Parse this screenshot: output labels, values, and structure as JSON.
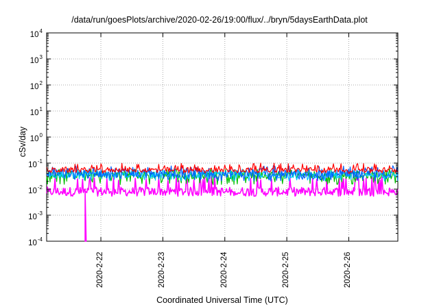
{
  "chart_data": {
    "type": "line",
    "title": "/data/run/goesPlots/archive/2020-02-26/19:00/flux/../bryn/5daysEarthData.plot",
    "xlabel": "Coordinated Universal Time (UTC)",
    "ylabel": "cSv/day",
    "yscale": "log",
    "ylim": [
      0.0001,
      10000
    ],
    "xlim": [
      "2020-02-21 03:00",
      "2020-02-26 19:00"
    ],
    "grid": true,
    "yticks": [
      {
        "base": "10",
        "exp": "4"
      },
      {
        "base": "10",
        "exp": "3"
      },
      {
        "base": "10",
        "exp": "2"
      },
      {
        "base": "10",
        "exp": "1"
      },
      {
        "base": "10",
        "exp": "0"
      },
      {
        "base": "10",
        "exp": "-1"
      },
      {
        "base": "10",
        "exp": "-2"
      },
      {
        "base": "10",
        "exp": "-3"
      },
      {
        "base": "10",
        "exp": "-4"
      }
    ],
    "xticks": [
      "2020-2-22",
      "2020-2-23",
      "2020-2-24",
      "2020-2-25",
      "2020-2-26"
    ],
    "series": [
      {
        "color": "#ff0000",
        "typical": 0.055,
        "low": 0.04,
        "high": 0.1
      },
      {
        "color": "#00c000",
        "typical": 0.035,
        "low": 0.015,
        "high": 0.06
      },
      {
        "color": "#0060ff",
        "typical": 0.04,
        "low": 0.02,
        "high": 0.08
      },
      {
        "color": "#00c8ff",
        "typical": 0.035,
        "low": 0.02,
        "high": 0.06
      },
      {
        "color": "#ff00ff",
        "typical": 0.008,
        "low": 0.006,
        "high": 0.03,
        "dip": {
          "x": "2020-02-21 18:00",
          "y": 0.0001
        }
      }
    ]
  }
}
